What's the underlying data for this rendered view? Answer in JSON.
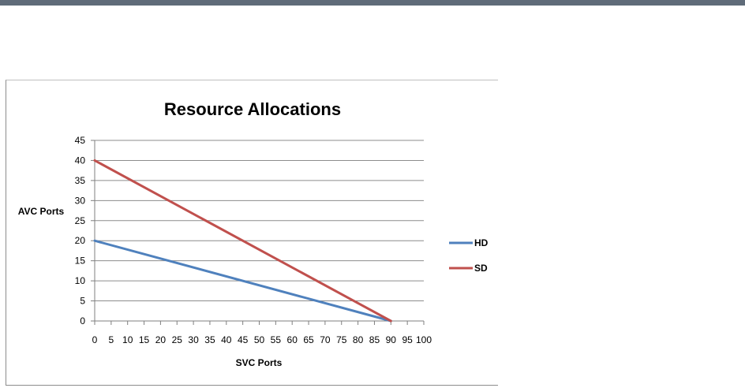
{
  "chart_data": {
    "type": "line",
    "title": "Resource Allocations",
    "xlabel": "SVC Ports",
    "ylabel": "AVC Ports",
    "xlim": [
      0,
      100
    ],
    "ylim": [
      0,
      45
    ],
    "xticks": [
      0,
      5,
      10,
      15,
      20,
      25,
      30,
      35,
      40,
      45,
      50,
      55,
      60,
      65,
      70,
      75,
      80,
      85,
      90,
      95,
      100
    ],
    "yticks": [
      0,
      5,
      10,
      15,
      20,
      25,
      30,
      35,
      40,
      45
    ],
    "grid": true,
    "legend_position": "right",
    "series": [
      {
        "name": "HD",
        "color": "#4f81bd",
        "x": [
          0,
          90
        ],
        "y": [
          20,
          0
        ]
      },
      {
        "name": "SD",
        "color": "#c0504d",
        "x": [
          0,
          90
        ],
        "y": [
          40,
          0
        ]
      }
    ]
  }
}
